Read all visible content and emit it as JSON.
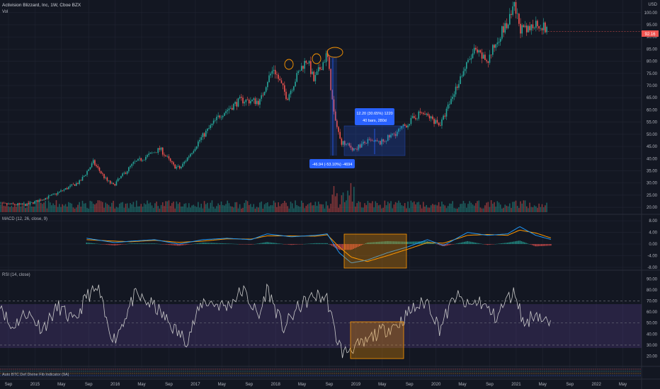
{
  "header": {
    "symbol_title": "Activision Blizzard, Inc, 1W, Cboe BZX",
    "vol_label": "Vol",
    "currency": "USD"
  },
  "colors": {
    "background": "#131722",
    "up": "#26a69a",
    "down": "#ef5350",
    "macd_line": "#2196f3",
    "signal_line": "#ff9800",
    "rsi_line": "#c9c9c9",
    "rsi_band": "#7e57c2",
    "highlight_box": "#ff9800",
    "measure_box": "#2962ff"
  },
  "price_panel": {
    "y_ticks": [
      "100.00",
      "95.00",
      "90.00",
      "85.00",
      "80.00",
      "75.00",
      "70.00",
      "65.00",
      "60.00",
      "55.00",
      "50.00",
      "45.00",
      "40.00",
      "35.00",
      "30.00",
      "25.00",
      "20.00"
    ],
    "last_price_badge": "92.16",
    "measure_label_upper_line1": "12.20 (30.65%) 1220",
    "measure_label_upper_line2": "40 bars, 280d",
    "measure_label_lower": "-46.94 (-53.10%) -4694"
  },
  "macd_panel": {
    "title": "MACD (12, 26, close, 9)",
    "y_ticks": [
      "8.00",
      "4.00",
      "0.00",
      "-4.00",
      "-8.00"
    ]
  },
  "rsi_panel": {
    "title": "RSI (14, close)",
    "y_ticks": [
      "90.00",
      "80.00",
      "70.00",
      "60.00",
      "50.00",
      "40.00",
      "30.00",
      "20.00"
    ]
  },
  "bottom_panel": {
    "title": "Auto BTC Def Divine Fib Indicator (9A)"
  },
  "x_axis": {
    "labels": [
      "Sep",
      "2015",
      "May",
      "Sep",
      "2016",
      "May",
      "Sep",
      "2017",
      "May",
      "Sep",
      "2018",
      "May",
      "Sep",
      "2019",
      "May",
      "Sep",
      "2020",
      "May",
      "Sep",
      "2021",
      "May",
      "Sep",
      "2022",
      "May"
    ]
  },
  "chart_data": [
    {
      "type": "candlestick",
      "title": "Activision Blizzard, Inc, 1W, Cboe BZX",
      "ylim": [
        18,
        104
      ],
      "x_range": [
        "2014-08",
        "2022-08"
      ],
      "keypoints": [
        {
          "date": "2014-08",
          "close": 21.5
        },
        {
          "date": "2015-01",
          "close": 21.0
        },
        {
          "date": "2015-05",
          "close": 25.0
        },
        {
          "date": "2015-09",
          "close": 30.5
        },
        {
          "date": "2015-11",
          "close": 38.5
        },
        {
          "date": "2016-01",
          "close": 31.0
        },
        {
          "date": "2016-02",
          "close": 29.0
        },
        {
          "date": "2016-05",
          "close": 38.0
        },
        {
          "date": "2016-09",
          "close": 44.0
        },
        {
          "date": "2016-11",
          "close": 37.0
        },
        {
          "date": "2016-12",
          "close": 36.0
        },
        {
          "date": "2017-03",
          "close": 48.0
        },
        {
          "date": "2017-06",
          "close": 58.0
        },
        {
          "date": "2017-09",
          "close": 64.0
        },
        {
          "date": "2017-12",
          "close": 63.5
        },
        {
          "date": "2018-01",
          "close": 72.0
        },
        {
          "date": "2018-02",
          "close": 77.0
        },
        {
          "date": "2018-04",
          "close": 65.0
        },
        {
          "date": "2018-06",
          "close": 77.0
        },
        {
          "date": "2018-07",
          "close": 81.0
        },
        {
          "date": "2018-08",
          "close": 72.0
        },
        {
          "date": "2018-10",
          "close": 83.0
        },
        {
          "date": "2018-11",
          "close": 58.0
        },
        {
          "date": "2018-12",
          "close": 47.0
        },
        {
          "date": "2019-02",
          "close": 44.0
        },
        {
          "date": "2019-04",
          "close": 47.0
        },
        {
          "date": "2019-06",
          "close": 46.5
        },
        {
          "date": "2019-09",
          "close": 52.0
        },
        {
          "date": "2019-12",
          "close": 59.0
        },
        {
          "date": "2020-03",
          "close": 54.0
        },
        {
          "date": "2020-06",
          "close": 74.0
        },
        {
          "date": "2020-08",
          "close": 84.0
        },
        {
          "date": "2020-10",
          "close": 80.0
        },
        {
          "date": "2020-12",
          "close": 92.0
        },
        {
          "date": "2021-01",
          "close": 95.0
        },
        {
          "date": "2021-02",
          "close": 102.0
        },
        {
          "date": "2021-03",
          "close": 93.0
        },
        {
          "date": "2021-04",
          "close": 92.0
        },
        {
          "date": "2021-05",
          "close": 96.0
        },
        {
          "date": "2021-06",
          "close": 95.0
        },
        {
          "date": "2021-07",
          "close": 92.16
        }
      ]
    },
    {
      "type": "line",
      "title": "MACD (12, 26, close, 9)",
      "ylim": [
        -8.5,
        9.5
      ],
      "series": [
        {
          "name": "MACD",
          "points": [
            [
              2015.75,
              2.0
            ],
            [
              2016.1,
              0.5
            ],
            [
              2016.3,
              1.0
            ],
            [
              2016.6,
              1.5
            ],
            [
              2016.9,
              0.0
            ],
            [
              2017.2,
              1.5
            ],
            [
              2017.5,
              2.0
            ],
            [
              2017.8,
              1.5
            ],
            [
              2018.0,
              3.5
            ],
            [
              2018.3,
              2.5
            ],
            [
              2018.6,
              3.0
            ],
            [
              2018.75,
              3.5
            ],
            [
              2018.9,
              -3.0
            ],
            [
              2019.05,
              -6.5
            ],
            [
              2019.25,
              -5.5
            ],
            [
              2019.5,
              -3.0
            ],
            [
              2019.75,
              -1.0
            ],
            [
              2020.0,
              1.5
            ],
            [
              2020.2,
              -0.5
            ],
            [
              2020.5,
              4.0
            ],
            [
              2020.75,
              3.0
            ],
            [
              2021.0,
              3.5
            ],
            [
              2021.15,
              6.0
            ],
            [
              2021.35,
              3.0
            ],
            [
              2021.55,
              1.5
            ]
          ]
        },
        {
          "name": "Signal",
          "points": [
            [
              2015.75,
              1.5
            ],
            [
              2016.1,
              1.0
            ],
            [
              2016.3,
              0.8
            ],
            [
              2016.6,
              1.3
            ],
            [
              2016.9,
              0.6
            ],
            [
              2017.2,
              1.0
            ],
            [
              2017.5,
              1.8
            ],
            [
              2017.8,
              1.7
            ],
            [
              2018.0,
              2.8
            ],
            [
              2018.3,
              2.8
            ],
            [
              2018.6,
              2.7
            ],
            [
              2018.75,
              3.2
            ],
            [
              2018.9,
              -1.0
            ],
            [
              2019.05,
              -4.5
            ],
            [
              2019.25,
              -6.0
            ],
            [
              2019.5,
              -4.0
            ],
            [
              2019.75,
              -1.8
            ],
            [
              2020.0,
              0.5
            ],
            [
              2020.2,
              0.3
            ],
            [
              2020.5,
              3.0
            ],
            [
              2020.75,
              3.3
            ],
            [
              2021.0,
              3.0
            ],
            [
              2021.15,
              4.8
            ],
            [
              2021.35,
              3.8
            ],
            [
              2021.55,
              2.0
            ]
          ]
        }
      ]
    },
    {
      "type": "line",
      "title": "RSI (14, close)",
      "ylim": [
        12,
        96
      ],
      "hlines": [
        70,
        50,
        30
      ],
      "series": [
        {
          "name": "RSI",
          "points": [
            [
              2014.67,
              70
            ],
            [
              2014.8,
              45
            ],
            [
              2015.0,
              60
            ],
            [
              2015.2,
              45
            ],
            [
              2015.4,
              65
            ],
            [
              2015.6,
              50
            ],
            [
              2015.75,
              75
            ],
            [
              2015.9,
              80
            ],
            [
              2016.0,
              50
            ],
            [
              2016.1,
              35
            ],
            [
              2016.35,
              75
            ],
            [
              2016.6,
              65
            ],
            [
              2016.9,
              40
            ],
            [
              2017.0,
              35
            ],
            [
              2017.2,
              70
            ],
            [
              2017.5,
              65
            ],
            [
              2017.7,
              80
            ],
            [
              2017.9,
              55
            ],
            [
              2018.0,
              82
            ],
            [
              2018.2,
              45
            ],
            [
              2018.4,
              65
            ],
            [
              2018.6,
              75
            ],
            [
              2018.75,
              72
            ],
            [
              2018.85,
              40
            ],
            [
              2018.95,
              22
            ],
            [
              2019.05,
              28
            ],
            [
              2019.2,
              30
            ],
            [
              2019.35,
              40
            ],
            [
              2019.5,
              45
            ],
            [
              2019.65,
              50
            ],
            [
              2019.8,
              62
            ],
            [
              2020.0,
              70
            ],
            [
              2020.15,
              45
            ],
            [
              2020.35,
              75
            ],
            [
              2020.5,
              65
            ],
            [
              2020.65,
              70
            ],
            [
              2020.85,
              55
            ],
            [
              2021.0,
              72
            ],
            [
              2021.1,
              78
            ],
            [
              2021.2,
              48
            ],
            [
              2021.35,
              60
            ],
            [
              2021.45,
              52
            ],
            [
              2021.55,
              48
            ]
          ]
        }
      ]
    }
  ]
}
